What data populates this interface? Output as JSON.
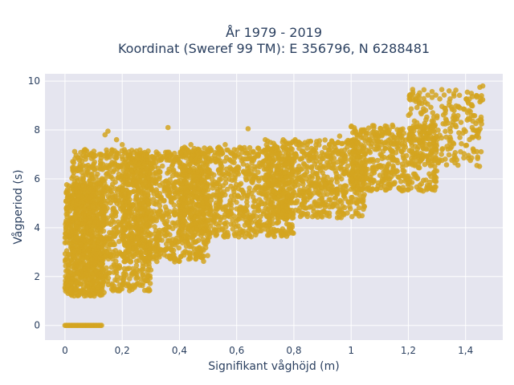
{
  "chart_data": {
    "type": "scatter",
    "title_line1": "År 1979 - 2019",
    "title_line2": "Koordinat (Sweref 99 TM): E 356796, N 6288481",
    "xlabel": "Signifikant våghöjd (m)",
    "ylabel": "Vågperiod (s)",
    "xlim": [
      -0.07,
      1.53
    ],
    "ylim": [
      -0.6,
      10.3
    ],
    "xticks": [
      0,
      0.2,
      0.4,
      0.6,
      0.8,
      1,
      1.2,
      1.4
    ],
    "xtick_labels": [
      "0",
      "0,2",
      "0,4",
      "0,6",
      "0,8",
      "1",
      "1,2",
      "1,4"
    ],
    "yticks": [
      0,
      2,
      4,
      6,
      8,
      10
    ],
    "ytick_labels": [
      "0",
      "2",
      "4",
      "6",
      "8",
      "10"
    ],
    "grid": true,
    "marker_color": "#d4a420",
    "plot_bg": "#e5e5ef",
    "gridline_color": "#ffffff",
    "series": [
      {
        "point_clouds": [
          {
            "x_range": [
              0,
              0.14
            ],
            "y_range": [
              1.2,
              5.8
            ],
            "count": 700
          },
          {
            "x_range": [
              0.02,
              0.3
            ],
            "y_range": [
              1.4,
              7.2
            ],
            "count": 900
          },
          {
            "x_range": [
              0.2,
              0.5
            ],
            "y_range": [
              2.6,
              7.1
            ],
            "count": 900
          },
          {
            "x_range": [
              0.4,
              0.8
            ],
            "y_range": [
              3.6,
              7.3
            ],
            "count": 900
          },
          {
            "x_range": [
              0.7,
              1.05
            ],
            "y_range": [
              4.4,
              7.6
            ],
            "count": 700
          },
          {
            "x_range": [
              1.0,
              1.3
            ],
            "y_range": [
              5.5,
              8.2
            ],
            "count": 500
          },
          {
            "x_range": [
              1.2,
              1.46
            ],
            "y_range": [
              6.5,
              9.7
            ],
            "count": 250
          }
        ],
        "zero_band": {
          "x_range": [
            0,
            0.13
          ],
          "y": 0
        },
        "outliers": [
          [
            0.07,
            7.2
          ],
          [
            0.08,
            6.3
          ],
          [
            0.1,
            6.6
          ],
          [
            0.12,
            7.0
          ],
          [
            0.14,
            7.8
          ],
          [
            0.15,
            7.95
          ],
          [
            0.18,
            7.6
          ],
          [
            0.2,
            7.4
          ],
          [
            0.36,
            8.1
          ],
          [
            0.44,
            7.4
          ],
          [
            0.5,
            7.2
          ],
          [
            0.56,
            7.4
          ],
          [
            0.64,
            8.05
          ],
          [
            0.7,
            7.6
          ],
          [
            0.74,
            7.3
          ],
          [
            0.96,
            7.75
          ],
          [
            1.08,
            7.9
          ],
          [
            1.17,
            8.0
          ],
          [
            1.23,
            8.3
          ],
          [
            1.28,
            8.2
          ],
          [
            1.3,
            8.5
          ],
          [
            1.33,
            8.8
          ],
          [
            1.36,
            8.8
          ],
          [
            1.38,
            8.9
          ],
          [
            1.41,
            9.1
          ],
          [
            1.44,
            9.4
          ],
          [
            1.45,
            9.75
          ],
          [
            1.46,
            9.8
          ],
          [
            0.01,
            1.6
          ],
          [
            0.0,
            1.55
          ]
        ]
      }
    ]
  }
}
